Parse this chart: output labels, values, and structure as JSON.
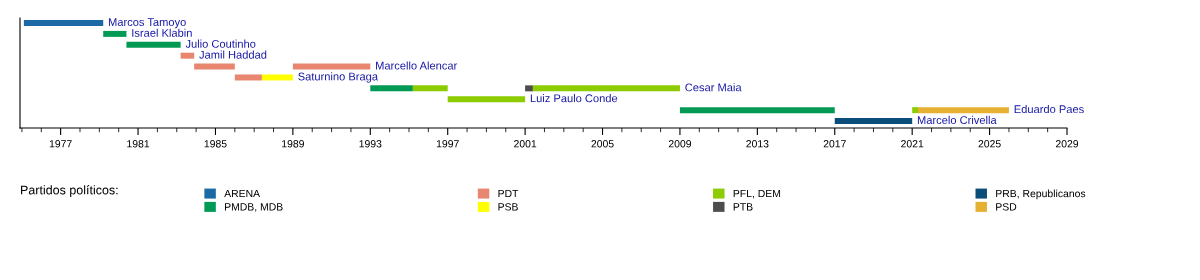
{
  "chart_data": {
    "type": "bar",
    "orientation": "horizontal",
    "categories": [
      "Marcos Tamoyo",
      "Israel Klabin",
      "Julio Coutinho",
      "Jamil Haddad",
      "Marcello Alencar",
      "Saturnino Braga",
      "Cesar Maia",
      "Luiz Paulo Conde",
      "Eduardo Paes",
      "Marcelo Crivella"
    ],
    "legend_title": "Partidos políticos:",
    "legend": "bottom",
    "grid": false,
    "xlim": [
      1974.9,
      2029
    ],
    "xticks": [
      1977,
      1981,
      1985,
      1989,
      1993,
      1997,
      2001,
      2005,
      2009,
      2013,
      2017,
      2021,
      2025,
      2029
    ],
    "series": [
      {
        "name": "ARENA",
        "color": "#1b6aa5",
        "base": [
          1975.1,
          null,
          null,
          null,
          null,
          null,
          null,
          null,
          null,
          null
        ],
        "values": [
          4.1,
          null,
          null,
          null,
          null,
          null,
          null,
          null,
          null,
          null
        ]
      },
      {
        "name": "PMDB, MDB",
        "color": "#009a55",
        "base": [
          null,
          1979.2,
          1980.4,
          null,
          null,
          null,
          1993.0,
          null,
          2009.0,
          null
        ],
        "values": [
          null,
          1.2,
          2.8,
          null,
          null,
          null,
          2.2,
          null,
          8.0,
          null
        ]
      },
      {
        "name": "PDT",
        "color": "#e88670",
        "base": [
          null,
          null,
          null,
          1983.2,
          1983.9,
          1986.0,
          null,
          null,
          null,
          null
        ],
        "values": [
          null,
          null,
          null,
          0.7,
          2.1,
          1.4,
          null,
          null,
          null,
          null
        ]
      },
      {
        "color": "#e88670",
        "base": [
          null,
          null,
          null,
          null,
          1989.0,
          null,
          null,
          null,
          null,
          null
        ],
        "values": [
          null,
          null,
          null,
          null,
          4.0,
          null,
          null,
          null,
          null,
          null
        ]
      },
      {
        "name": "PSB",
        "color": "#ffff00",
        "base": [
          null,
          null,
          null,
          null,
          null,
          1987.4,
          null,
          null,
          null,
          null
        ],
        "values": [
          null,
          null,
          null,
          null,
          null,
          1.6,
          null,
          null,
          null,
          null
        ]
      },
      {
        "name": "PFL, DEM",
        "color": "#8ccc00",
        "base": [
          null,
          null,
          null,
          null,
          null,
          null,
          1995.2,
          1997.0,
          2021.0,
          null
        ],
        "values": [
          null,
          null,
          null,
          null,
          null,
          null,
          1.8,
          4.0,
          0.3,
          null
        ]
      },
      {
        "color": "#8ccc00",
        "base": [
          null,
          null,
          null,
          null,
          null,
          null,
          2001.4,
          null,
          null,
          null
        ],
        "values": [
          null,
          null,
          null,
          null,
          null,
          null,
          7.6,
          null,
          null,
          null
        ]
      },
      {
        "name": "PTB",
        "color": "#4d4d4d",
        "base": [
          null,
          null,
          null,
          null,
          null,
          null,
          2001.0,
          null,
          null,
          null
        ],
        "values": [
          null,
          null,
          null,
          null,
          null,
          null,
          0.4,
          null,
          null,
          null
        ]
      },
      {
        "name": "PRB, Republicanos",
        "color": "#0a4d7a",
        "base": [
          null,
          null,
          null,
          null,
          null,
          null,
          null,
          null,
          null,
          2017.0
        ],
        "values": [
          null,
          null,
          null,
          null,
          null,
          null,
          null,
          null,
          null,
          4.0
        ]
      },
      {
        "name": "PSD",
        "color": "#e6b032",
        "base": [
          null,
          null,
          null,
          null,
          null,
          null,
          null,
          null,
          2021.3,
          null
        ],
        "values": [
          null,
          null,
          null,
          null,
          null,
          null,
          null,
          null,
          4.7,
          null
        ]
      }
    ]
  }
}
